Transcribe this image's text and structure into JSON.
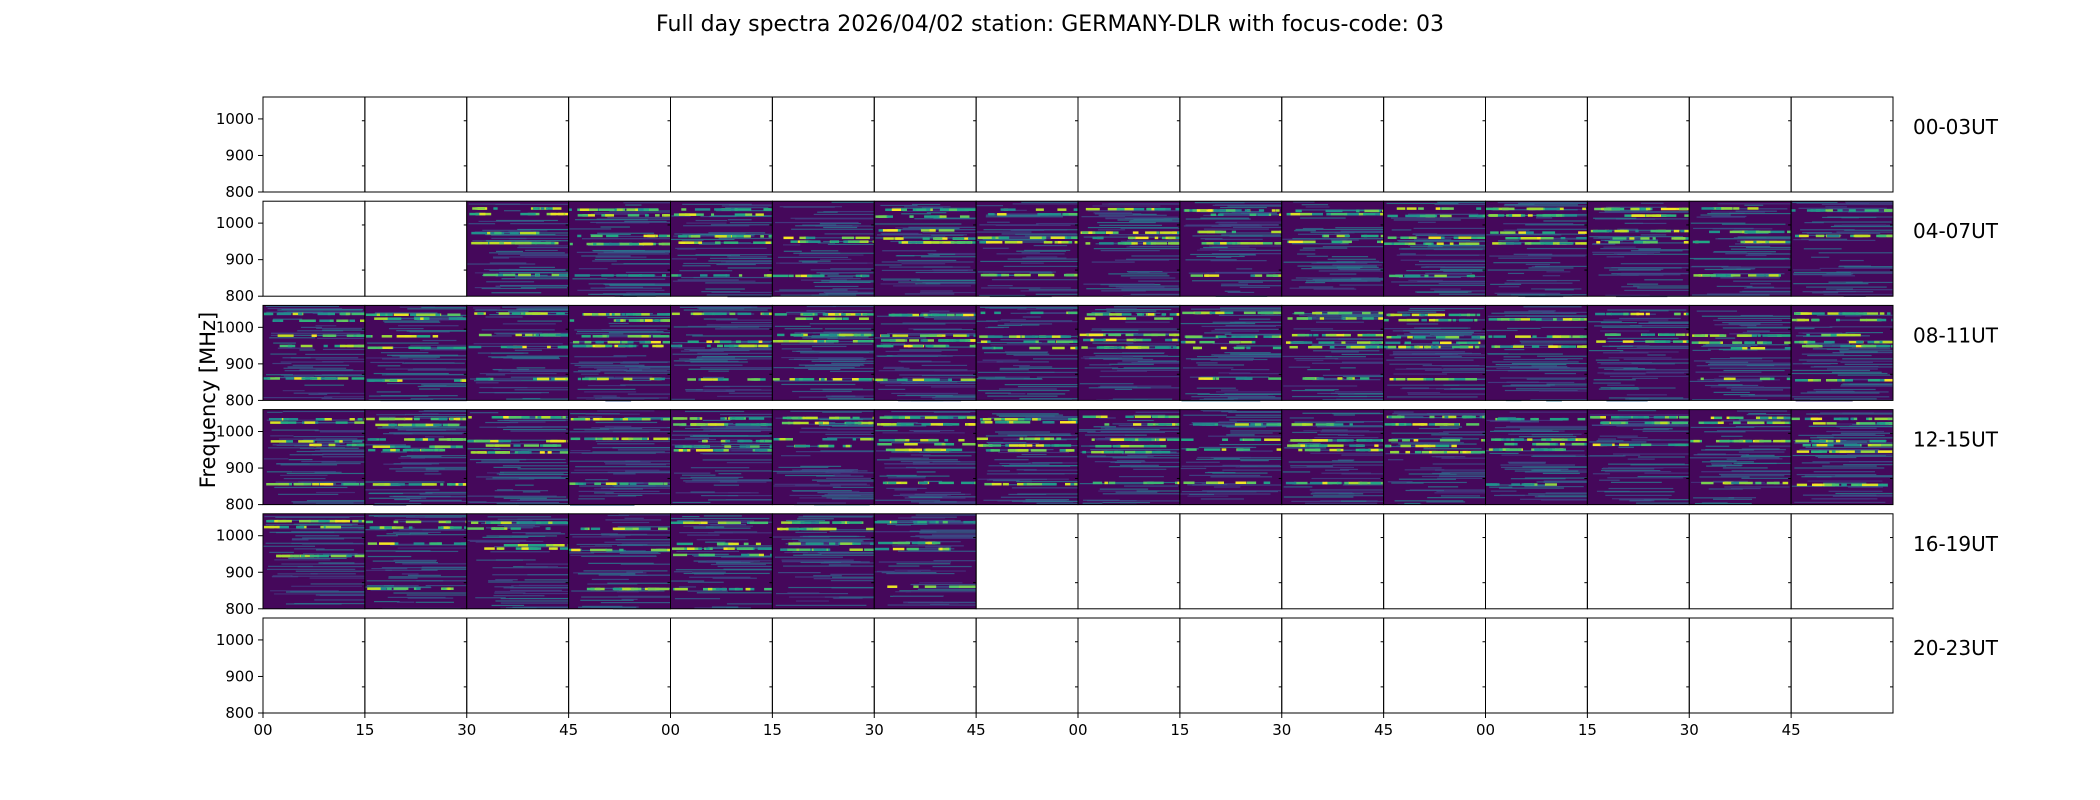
{
  "chart_data": {
    "type": "heatmap",
    "title": "Full day spectra 2026/04/02 station: GERMANY-DLR with focus-code: 03",
    "ylabel": "Frequency [MHz]",
    "xlabel": "",
    "ylim": [
      800,
      1060
    ],
    "yticks": [
      800,
      900,
      1000
    ],
    "xticks": [
      "00",
      "15",
      "30",
      "45",
      "00",
      "15",
      "30",
      "45",
      "00",
      "15",
      "30",
      "45",
      "00",
      "15",
      "30",
      "45"
    ],
    "segment_minutes": 15,
    "colormap": "viridis",
    "grid": false,
    "rows": [
      {
        "label": "00-03UT",
        "filled": [
          0,
          0,
          0,
          0,
          0,
          0,
          0,
          0,
          0,
          0,
          0,
          0,
          0,
          0,
          0,
          0
        ]
      },
      {
        "label": "04-07UT",
        "filled": [
          0,
          0,
          1,
          1,
          1,
          1,
          1,
          1,
          1,
          1,
          1,
          1,
          1,
          1,
          1,
          1
        ]
      },
      {
        "label": "08-11UT",
        "filled": [
          1,
          1,
          1,
          1,
          1,
          1,
          1,
          1,
          1,
          1,
          1,
          1,
          1,
          1,
          1,
          1
        ]
      },
      {
        "label": "12-15UT",
        "filled": [
          1,
          1,
          1,
          1,
          1,
          1,
          1,
          1,
          1,
          1,
          1,
          1,
          1,
          1,
          1,
          1
        ]
      },
      {
        "label": "16-19UT",
        "filled": [
          1,
          1,
          1,
          1,
          1,
          1,
          1,
          0,
          0,
          0,
          0,
          0,
          0,
          0,
          0,
          0
        ]
      },
      {
        "label": "20-23UT",
        "filled": [
          0,
          0,
          0,
          0,
          0,
          0,
          0,
          0,
          0,
          0,
          0,
          0,
          0,
          0,
          0,
          0
        ]
      }
    ],
    "bright_bands_mhz": [
      1025,
      965,
      950,
      860,
      1040,
      980
    ]
  }
}
